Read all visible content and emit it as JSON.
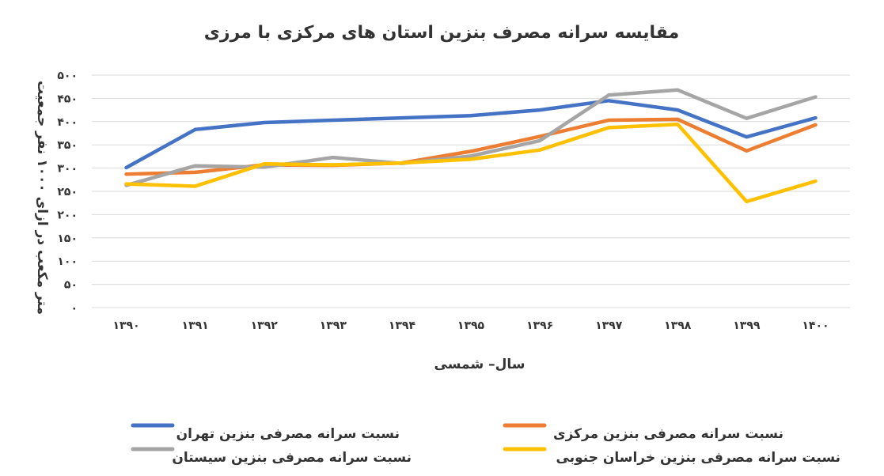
{
  "chart_data": {
    "type": "line",
    "title": "مقایسه سرانه مصرف بنزین استان های مرکزی با مرزی",
    "xlabel": "سال– شمسی",
    "ylabel": "متر مکعب در ازای ۱۰۰۰ نفر جمعیت",
    "ylim": [
      0,
      500
    ],
    "y_ticks": [
      "۰",
      "۵۰",
      "۱۰۰",
      "۱۵۰",
      "۲۰۰",
      "۲۵۰",
      "۳۰۰",
      "۳۵۰",
      "۴۰۰",
      "۴۵۰",
      "۵۰۰"
    ],
    "y_tick_values": [
      0,
      50,
      100,
      150,
      200,
      250,
      300,
      350,
      400,
      450,
      500
    ],
    "categories": [
      "۱۳۹۰",
      "۱۳۹۱",
      "۱۳۹۲",
      "۱۳۹۳",
      "۱۳۹۴",
      "۱۳۹۵",
      "۱۳۹۶",
      "۱۳۹۷",
      "۱۳۹۸",
      "۱۳۹۹",
      "۱۴۰۰"
    ],
    "grid": "horizontal",
    "legend_position": "bottom",
    "series": [
      {
        "name": "نسبت سرانه مصرفی بنزین تهران",
        "color": "#4472C4",
        "values": [
          301,
          383,
          398,
          403,
          408,
          413,
          425,
          445,
          425,
          367,
          408
        ]
      },
      {
        "name": "نسبت سرانه مصرفی بنزین مرکزی",
        "color": "#ED7D31",
        "values": [
          287,
          291,
          307,
          306,
          311,
          336,
          368,
          403,
          405,
          337,
          393
        ]
      },
      {
        "name": "نسبت سرانه مصرفی بنزین سیستان",
        "color": "#A5A5A5",
        "values": [
          263,
          305,
          302,
          323,
          310,
          326,
          359,
          457,
          468,
          407,
          453
        ]
      },
      {
        "name": "نسبت سرانه مصرفی بنزین خراسان جنوبی",
        "color": "#FFC000",
        "values": [
          266,
          261,
          309,
          307,
          311,
          319,
          339,
          387,
          394,
          228,
          272
        ]
      }
    ]
  }
}
